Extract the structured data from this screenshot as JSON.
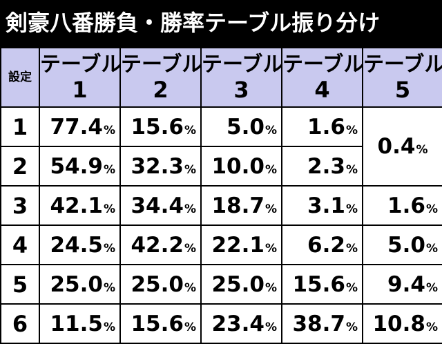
{
  "title": "剣豪八番勝負・勝率テーブル振り分け",
  "table": {
    "corner_label": "設定",
    "columns": [
      {
        "line1": "テーブル",
        "line2": "1"
      },
      {
        "line1": "テーブル",
        "line2": "2"
      },
      {
        "line1": "テーブル",
        "line2": "3"
      },
      {
        "line1": "テーブル",
        "line2": "4"
      },
      {
        "line1": "テーブル",
        "line2": "5"
      }
    ],
    "pct_sign": "%",
    "rows": [
      {
        "setting": "1",
        "values": [
          "77.4",
          "15.6",
          "5.0",
          "1.6"
        ]
      },
      {
        "setting": "2",
        "values": [
          "54.9",
          "32.3",
          "10.0",
          "2.3"
        ]
      },
      {
        "setting": "3",
        "values": [
          "42.1",
          "34.4",
          "18.7",
          "3.1",
          "1.6"
        ]
      },
      {
        "setting": "4",
        "values": [
          "24.5",
          "42.2",
          "22.1",
          "6.2",
          "5.0"
        ]
      },
      {
        "setting": "5",
        "values": [
          "25.0",
          "25.0",
          "25.0",
          "15.6",
          "9.4"
        ]
      },
      {
        "setting": "6",
        "values": [
          "11.5",
          "15.6",
          "23.4",
          "38.7",
          "10.8"
        ]
      }
    ],
    "merged_table5_rows_1_2": "0.4"
  }
}
